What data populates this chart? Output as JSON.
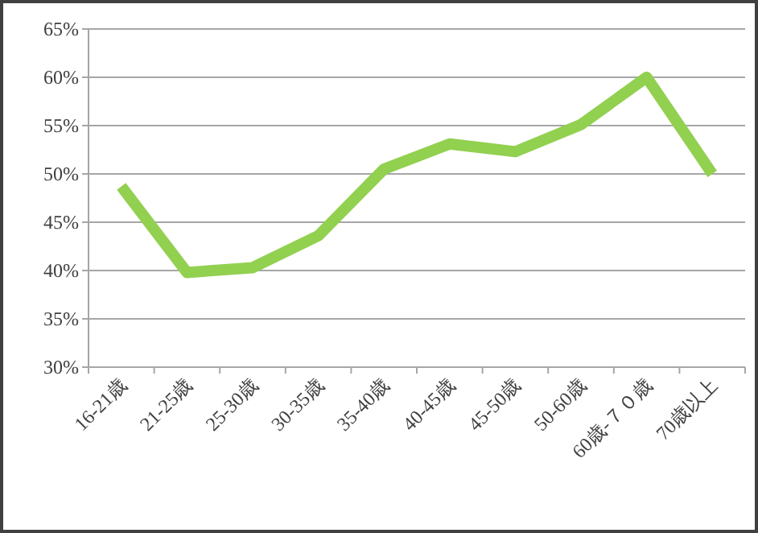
{
  "chart_data": {
    "type": "line",
    "categories": [
      "16-21歳",
      "21-25歳",
      "25-30歳",
      "30-35歳",
      "35-40歳",
      "40-45歳",
      "45-50歳",
      "50-60歳",
      "60歳-７０歳",
      "70歳以上"
    ],
    "values": [
      48.7,
      39.8,
      40.3,
      43.6,
      50.5,
      53.1,
      52.3,
      55.1,
      60.0,
      50.0
    ],
    "color": "#92d050",
    "ylim": [
      30,
      65
    ],
    "yticks": [
      {
        "value": 30,
        "label": "30%"
      },
      {
        "value": 35,
        "label": "35%"
      },
      {
        "value": 40,
        "label": "40%"
      },
      {
        "value": 45,
        "label": "45%"
      },
      {
        "value": 50,
        "label": "50%"
      },
      {
        "value": 55,
        "label": "55%"
      },
      {
        "value": 60,
        "label": "60%"
      },
      {
        "value": 65,
        "label": "65%"
      }
    ],
    "grid": "y",
    "marker": "none",
    "line_style": "solid",
    "legend": false
  }
}
